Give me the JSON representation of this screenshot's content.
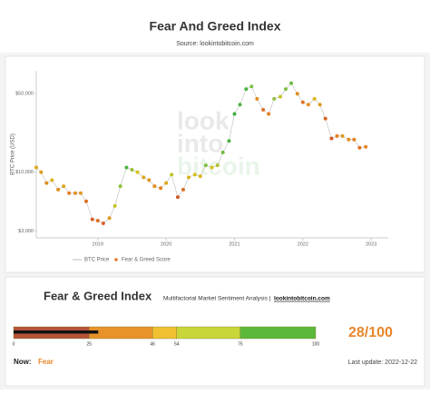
{
  "chart_data": {
    "type": "scatter-line",
    "title": "Fear And Greed Index",
    "subtitle": "Source: lookintobitcoin.com",
    "y_label": "BTC Price (USD)",
    "log_y": true,
    "grid": false,
    "legend": "bottom-left",
    "watermark": [
      "look",
      "into",
      "bitcoin"
    ],
    "xlim": [
      2018.1,
      2023.25
    ],
    "xticks": [
      2019,
      2020,
      2021,
      2022,
      2023
    ],
    "ylim": [
      2600,
      80000
    ],
    "yticks": [
      {
        "value": 3000,
        "label": "$3,000"
      },
      {
        "value": 10000,
        "label": "$10,000"
      },
      {
        "value": 50000,
        "label": "$50,000"
      }
    ],
    "x": [
      2018.1,
      2018.17,
      2018.25,
      2018.33,
      2018.42,
      2018.5,
      2018.58,
      2018.67,
      2018.75,
      2018.83,
      2018.92,
      2019.0,
      2019.08,
      2019.17,
      2019.25,
      2019.33,
      2019.42,
      2019.5,
      2019.58,
      2019.67,
      2019.75,
      2019.83,
      2019.92,
      2020.0,
      2020.08,
      2020.17,
      2020.25,
      2020.33,
      2020.42,
      2020.5,
      2020.58,
      2020.67,
      2020.75,
      2020.83,
      2020.92,
      2021.0,
      2021.08,
      2021.17,
      2021.25,
      2021.33,
      2021.42,
      2021.5,
      2021.58,
      2021.67,
      2021.75,
      2021.83,
      2021.92,
      2022.0,
      2022.08,
      2022.17,
      2022.25,
      2022.33,
      2022.42,
      2022.5,
      2022.58,
      2022.67,
      2022.75,
      2022.83,
      2022.92
    ],
    "series": [
      {
        "name": "BTC Price",
        "color": "#bbbbbb",
        "values": [
          11000,
          10000,
          8000,
          8500,
          7000,
          7500,
          6500,
          6500,
          6500,
          5500,
          3800,
          3700,
          3500,
          3900,
          5000,
          7500,
          11000,
          10500,
          10000,
          9000,
          8500,
          7500,
          7200,
          8000,
          9500,
          6000,
          7000,
          9000,
          9500,
          9200,
          11500,
          11000,
          11500,
          15000,
          19000,
          33000,
          40000,
          55000,
          58000,
          45000,
          36000,
          33000,
          45000,
          47000,
          55000,
          62000,
          50000,
          42000,
          40000,
          45000,
          40000,
          30000,
          20000,
          21000,
          21000,
          19500,
          19500,
          16500,
          16800
        ]
      },
      {
        "name": "Fear & Greed Score",
        "color": "#e8792a",
        "values": [
          40,
          35,
          30,
          45,
          30,
          40,
          25,
          30,
          35,
          20,
          15,
          20,
          15,
          35,
          55,
          70,
          90,
          65,
          50,
          40,
          35,
          30,
          25,
          40,
          55,
          12,
          20,
          45,
          50,
          45,
          75,
          50,
          60,
          80,
          92,
          95,
          90,
          90,
          75,
          30,
          20,
          25,
          70,
          55,
          75,
          80,
          30,
          20,
          30,
          45,
          35,
          15,
          10,
          25,
          35,
          30,
          25,
          20,
          28
        ]
      }
    ]
  },
  "index_panel": {
    "title": "Fear & Greed Index",
    "subtitle": "Multifactorial Market Sentiment Analysis |",
    "link": "lookintobitcoin.com",
    "gauge": {
      "value": 28,
      "value_label": "28/100",
      "range": [
        0,
        100
      ],
      "ticks": [
        0,
        25,
        46,
        54,
        75,
        100
      ],
      "colors": [
        "#b5523a",
        "#e8922a",
        "#f0c030",
        "#c8d63a",
        "#5cb83a"
      ]
    },
    "now_label": "Now:",
    "now_value": "Fear",
    "last_update": "Last update: 2022-12-22"
  }
}
